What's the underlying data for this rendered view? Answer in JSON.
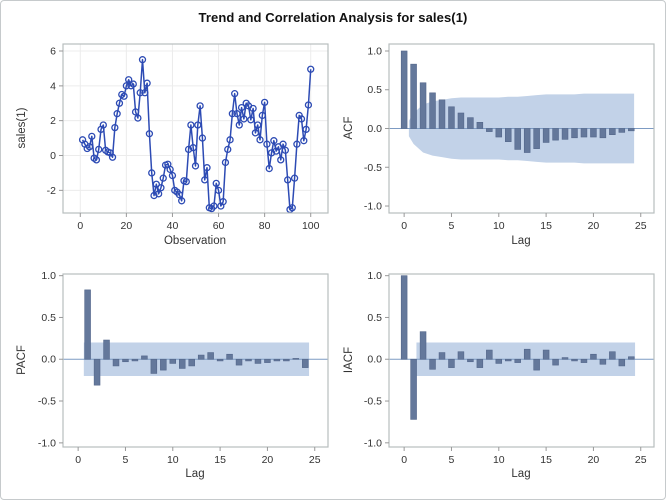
{
  "title": "Trend and Correlation Analysis for sales(1)",
  "colors": {
    "series_line": "#2D4BB4",
    "marker": "#2D4BB4",
    "bar_fill": "#64789B",
    "bar_stroke": "#53668A",
    "band_fill": "#C2D2E8",
    "zero_line": "#7D9BC3",
    "grid": "#ECECEC",
    "frame": "#B8BDBF",
    "tick_mark": "#999999",
    "tick_text": "#333333",
    "label_text": "#333333",
    "outer_border": "#C6CACC",
    "background": "#FFFFFF"
  },
  "chart_data": [
    {
      "type": "line",
      "panel": "top-left",
      "xlabel": "Observation",
      "ylabel": "sales(1)",
      "xlim": [
        -7.5,
        107.5
      ],
      "ylim": [
        -3.3,
        6.4
      ],
      "xticks": [
        0,
        20,
        40,
        60,
        80,
        100
      ],
      "xtick_labels": [
        "0",
        "20",
        "40",
        "60",
        "80",
        "100"
      ],
      "yticks": [
        -2,
        0,
        2,
        4,
        6
      ],
      "ytick_labels": [
        "-2",
        "0",
        "2",
        "4",
        "6"
      ],
      "grid": true,
      "marker": "open-circle",
      "x": [
        1,
        2,
        3,
        4,
        5,
        6,
        7,
        8,
        9,
        10,
        11,
        12,
        13,
        14,
        15,
        16,
        17,
        18,
        19,
        20,
        21,
        22,
        23,
        24,
        25,
        26,
        27,
        28,
        29,
        30,
        31,
        32,
        33,
        34,
        35,
        36,
        37,
        38,
        39,
        40,
        41,
        42,
        43,
        44,
        45,
        46,
        47,
        48,
        49,
        50,
        51,
        52,
        53,
        54,
        55,
        56,
        57,
        58,
        59,
        60,
        61,
        62,
        63,
        64,
        65,
        66,
        67,
        68,
        69,
        70,
        71,
        72,
        73,
        74,
        75,
        76,
        77,
        78,
        79,
        80,
        81,
        82,
        83,
        84,
        85,
        86,
        87,
        88,
        89,
        90,
        91,
        92,
        93,
        94,
        95,
        96,
        97,
        98,
        99,
        100
      ],
      "y": [
        0.9,
        0.65,
        0.4,
        0.5,
        1.1,
        -0.15,
        -0.25,
        0.35,
        1.5,
        1.75,
        0.3,
        0.2,
        0.15,
        -0.1,
        1.6,
        2.4,
        3.0,
        3.5,
        3.4,
        4.0,
        4.35,
        4.0,
        4.1,
        2.5,
        2.15,
        3.6,
        5.5,
        3.6,
        4.15,
        1.25,
        -1.0,
        -2.3,
        -1.65,
        -2.2,
        -1.85,
        -1.3,
        -0.55,
        -0.5,
        -0.8,
        -1.15,
        -2.0,
        -2.1,
        -2.25,
        -2.6,
        -1.45,
        -1.5,
        0.35,
        1.75,
        0.45,
        -0.6,
        1.75,
        2.85,
        1.0,
        -1.4,
        -0.7,
        -3.0,
        -3.05,
        -2.9,
        -1.6,
        -2.0,
        -2.9,
        -2.65,
        -0.4,
        0.35,
        0.9,
        2.4,
        3.55,
        2.4,
        1.75,
        2.75,
        2.1,
        3.0,
        2.85,
        2.05,
        2.7,
        1.3,
        1.75,
        0.9,
        2.3,
        3.05,
        0.65,
        -0.75,
        0.15,
        0.85,
        0.25,
        0.5,
        -0.25,
        0.65,
        0.3,
        -1.4,
        -3.1,
        -3.0,
        -1.3,
        0.65,
        2.3,
        2.1,
        0.85,
        1.5,
        2.9,
        4.95
      ]
    },
    {
      "type": "bar",
      "panel": "top-right",
      "xlabel": "Lag",
      "ylabel": "ACF",
      "xlim": [
        -1.6,
        26.4
      ],
      "ylim": [
        -1.09,
        1.09
      ],
      "xticks": [
        0,
        5,
        10,
        15,
        20,
        25
      ],
      "xtick_labels": [
        "0",
        "5",
        "10",
        "15",
        "20",
        "25"
      ],
      "yticks": [
        -1.0,
        -0.5,
        0.0,
        0.5,
        1.0
      ],
      "ytick_labels": [
        "-1.0",
        "-0.5",
        "0.0",
        "0.5",
        "1.0"
      ],
      "grid": false,
      "lags": [
        0,
        1,
        2,
        3,
        4,
        5,
        6,
        7,
        8,
        9,
        10,
        11,
        12,
        13,
        14,
        15,
        16,
        17,
        18,
        19,
        20,
        21,
        22,
        23,
        24
      ],
      "values": [
        1.0,
        0.83,
        0.59,
        0.46,
        0.37,
        0.28,
        0.2,
        0.14,
        0.08,
        -0.04,
        -0.11,
        -0.17,
        -0.27,
        -0.31,
        -0.26,
        -0.18,
        -0.15,
        -0.14,
        -0.12,
        -0.11,
        -0.11,
        -0.12,
        -0.08,
        -0.05,
        -0.03
      ],
      "band": {
        "x": [
          0.5,
          1,
          2,
          3,
          4,
          5,
          6,
          7,
          8,
          9,
          10,
          11,
          12,
          13,
          14,
          15,
          16,
          17,
          18,
          19,
          20,
          21,
          22,
          23,
          24,
          24.3
        ],
        "upper": [
          0.1,
          0.2,
          0.31,
          0.35,
          0.37,
          0.39,
          0.4,
          0.4,
          0.4,
          0.4,
          0.4,
          0.41,
          0.41,
          0.42,
          0.43,
          0.44,
          0.44,
          0.44,
          0.44,
          0.45,
          0.45,
          0.45,
          0.45,
          0.45,
          0.45,
          0.45
        ],
        "lower": [
          -0.1,
          -0.2,
          -0.31,
          -0.35,
          -0.37,
          -0.39,
          -0.4,
          -0.4,
          -0.4,
          -0.4,
          -0.4,
          -0.41,
          -0.41,
          -0.42,
          -0.43,
          -0.44,
          -0.44,
          -0.44,
          -0.44,
          -0.45,
          -0.45,
          -0.45,
          -0.45,
          -0.45,
          -0.45,
          -0.45
        ]
      }
    },
    {
      "type": "bar",
      "panel": "bottom-left",
      "xlabel": "Lag",
      "ylabel": "PACF",
      "xlim": [
        -1.6,
        26.4
      ],
      "ylim": [
        -1.05,
        1.02
      ],
      "xticks": [
        0,
        5,
        10,
        15,
        20,
        25
      ],
      "xtick_labels": [
        "0",
        "5",
        "10",
        "15",
        "20",
        "25"
      ],
      "yticks": [
        -1.0,
        -0.5,
        0.0,
        0.5,
        1.0
      ],
      "ytick_labels": [
        "-1.0",
        "-0.5",
        "0.0",
        "0.5",
        "1.0"
      ],
      "grid": false,
      "lags": [
        1,
        2,
        3,
        4,
        5,
        6,
        7,
        8,
        9,
        10,
        11,
        12,
        13,
        14,
        15,
        16,
        17,
        18,
        19,
        20,
        21,
        22,
        23,
        24
      ],
      "values": [
        0.83,
        -0.31,
        0.23,
        -0.08,
        -0.03,
        -0.02,
        0.04,
        -0.17,
        -0.13,
        -0.05,
        -0.11,
        -0.08,
        0.05,
        0.08,
        -0.02,
        0.06,
        -0.07,
        -0.02,
        -0.05,
        -0.04,
        -0.02,
        -0.02,
        0.01,
        -0.1
      ],
      "band": {
        "x": [
          0.6,
          24.4
        ],
        "upper": [
          0.2,
          0.2
        ],
        "lower": [
          -0.2,
          -0.2
        ]
      }
    },
    {
      "type": "bar",
      "panel": "bottom-right",
      "xlabel": "Lag",
      "ylabel": "IACF",
      "xlim": [
        -1.6,
        26.4
      ],
      "ylim": [
        -1.05,
        1.02
      ],
      "xticks": [
        0,
        5,
        10,
        15,
        20,
        25
      ],
      "xtick_labels": [
        "0",
        "5",
        "10",
        "15",
        "20",
        "25"
      ],
      "yticks": [
        -1.0,
        -0.5,
        0.0,
        0.5,
        1.0
      ],
      "ytick_labels": [
        "-1.0",
        "-0.5",
        "0.0",
        "0.5",
        "1.0"
      ],
      "grid": false,
      "lags": [
        0,
        1,
        2,
        3,
        4,
        5,
        6,
        7,
        8,
        9,
        10,
        11,
        12,
        13,
        14,
        15,
        16,
        17,
        18,
        19,
        20,
        21,
        22,
        23,
        24
      ],
      "values": [
        1.0,
        -0.72,
        0.33,
        -0.12,
        0.08,
        -0.1,
        0.09,
        -0.03,
        -0.1,
        0.11,
        -0.05,
        -0.02,
        -0.04,
        0.12,
        -0.13,
        0.11,
        -0.07,
        0.02,
        -0.02,
        -0.04,
        0.06,
        -0.06,
        0.09,
        -0.08,
        0.03
      ],
      "band": {
        "x": [
          1.3,
          24.4
        ],
        "upper": [
          0.2,
          0.2
        ],
        "lower": [
          -0.2,
          -0.2
        ]
      }
    }
  ]
}
